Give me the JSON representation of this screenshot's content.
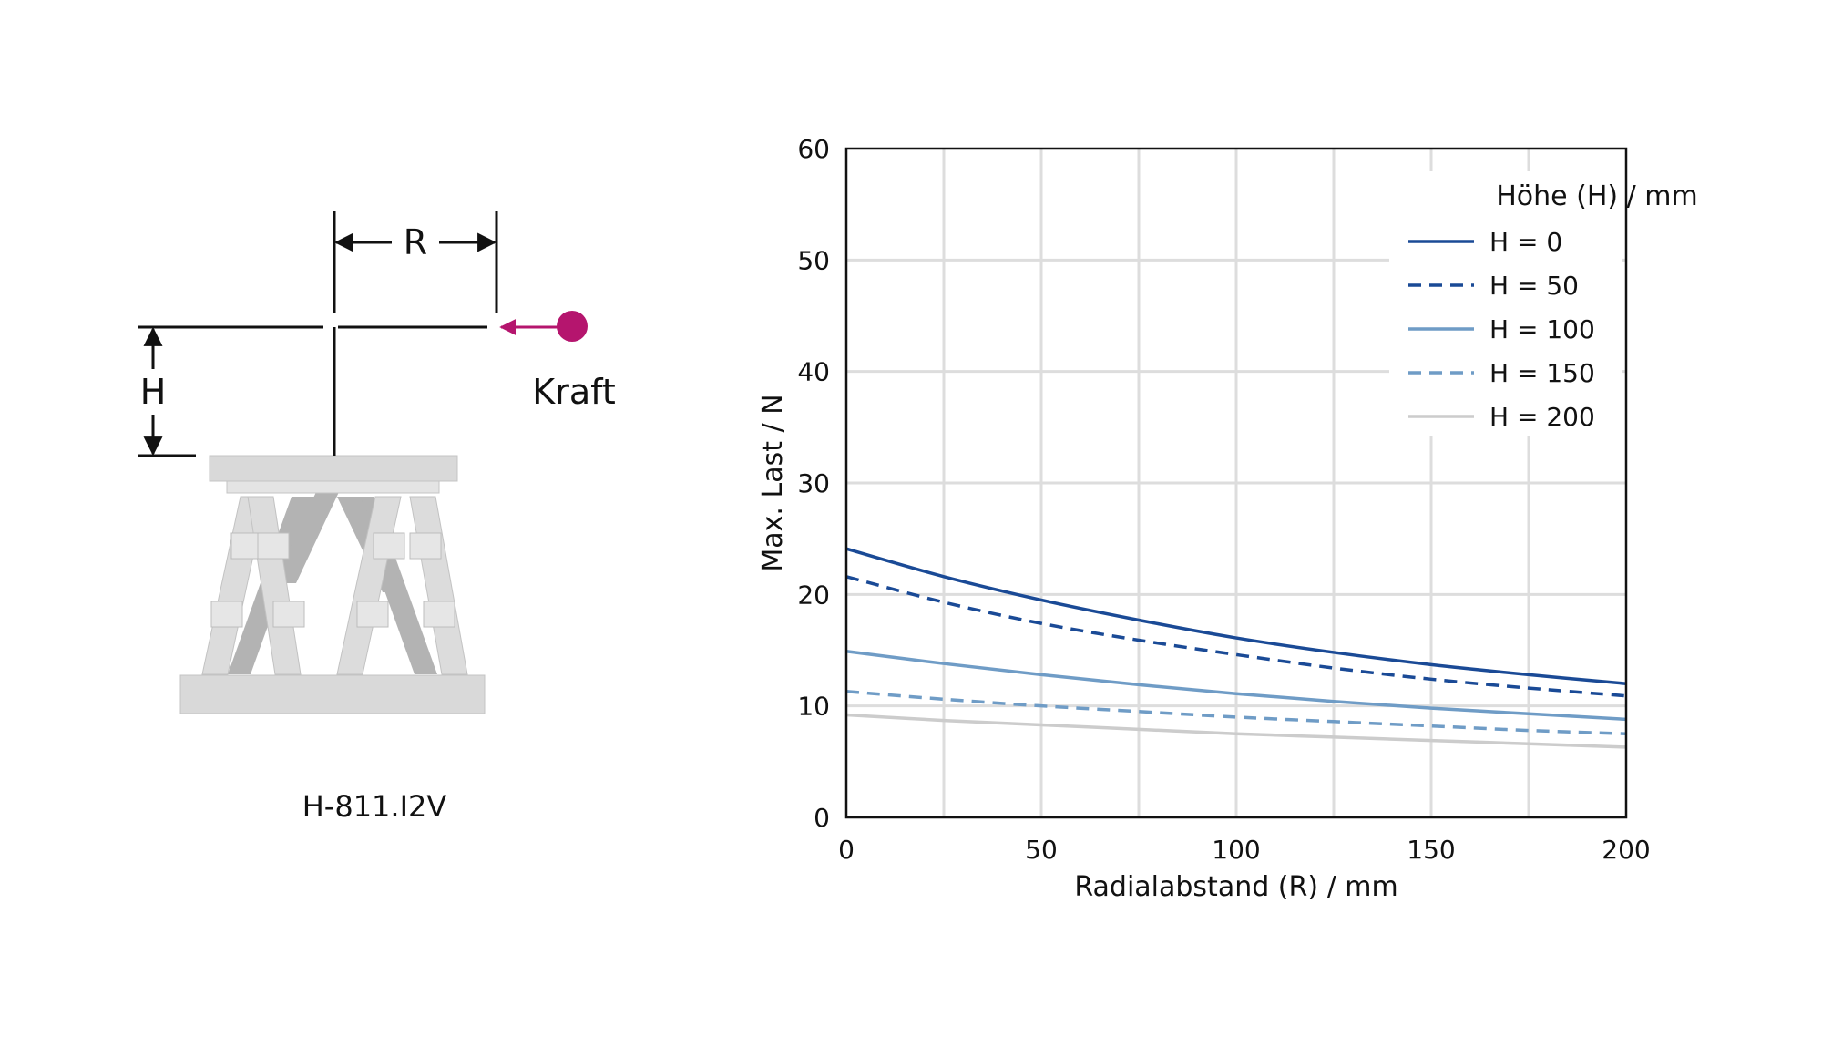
{
  "diagram": {
    "labels": {
      "radius": "R",
      "height": "H",
      "force": "Kraft",
      "model": "H-811.I2V"
    },
    "colors": {
      "force_point": "#b5156e",
      "hexapod_light": "#d9d9d9",
      "hexapod_dark": "#b3b3b3",
      "dimension_lines": "#111111"
    }
  },
  "chart_data": {
    "type": "line",
    "xlabel": "Radialabstand (R) / mm",
    "ylabel": "Max. Last / N",
    "xlim": [
      0,
      200
    ],
    "ylim": [
      0,
      60
    ],
    "xticks": [
      0,
      50,
      100,
      150,
      200
    ],
    "yticks": [
      0,
      10,
      20,
      30,
      40,
      50,
      60
    ],
    "x_minor_grid": [
      25,
      75,
      125,
      175
    ],
    "grid": true,
    "legend": {
      "title": "Höhe (H) / mm",
      "placement": "top-right"
    },
    "x": [
      0,
      25,
      50,
      75,
      100,
      125,
      150,
      175,
      200
    ],
    "series": [
      {
        "name": "H = 0",
        "style": "solid",
        "color": "#1a4a96",
        "values": [
          24.1,
          21.6,
          19.5,
          17.7,
          16.1,
          14.8,
          13.7,
          12.8,
          12.0
        ]
      },
      {
        "name": "H = 50",
        "style": "dashed",
        "color": "#1a4a96",
        "values": [
          21.6,
          19.3,
          17.4,
          15.9,
          14.6,
          13.4,
          12.4,
          11.6,
          10.9
        ]
      },
      {
        "name": "H = 100",
        "style": "solid",
        "color": "#6f9cc6",
        "values": [
          14.9,
          13.8,
          12.8,
          11.9,
          11.1,
          10.4,
          9.8,
          9.3,
          8.8
        ]
      },
      {
        "name": "H = 150",
        "style": "dashed",
        "color": "#6f9cc6",
        "values": [
          11.3,
          10.6,
          10.0,
          9.5,
          9.0,
          8.6,
          8.2,
          7.8,
          7.5
        ]
      },
      {
        "name": "H = 200",
        "style": "solid",
        "color": "#cccccc",
        "values": [
          9.2,
          8.7,
          8.3,
          7.9,
          7.5,
          7.2,
          6.9,
          6.6,
          6.3
        ]
      }
    ]
  }
}
